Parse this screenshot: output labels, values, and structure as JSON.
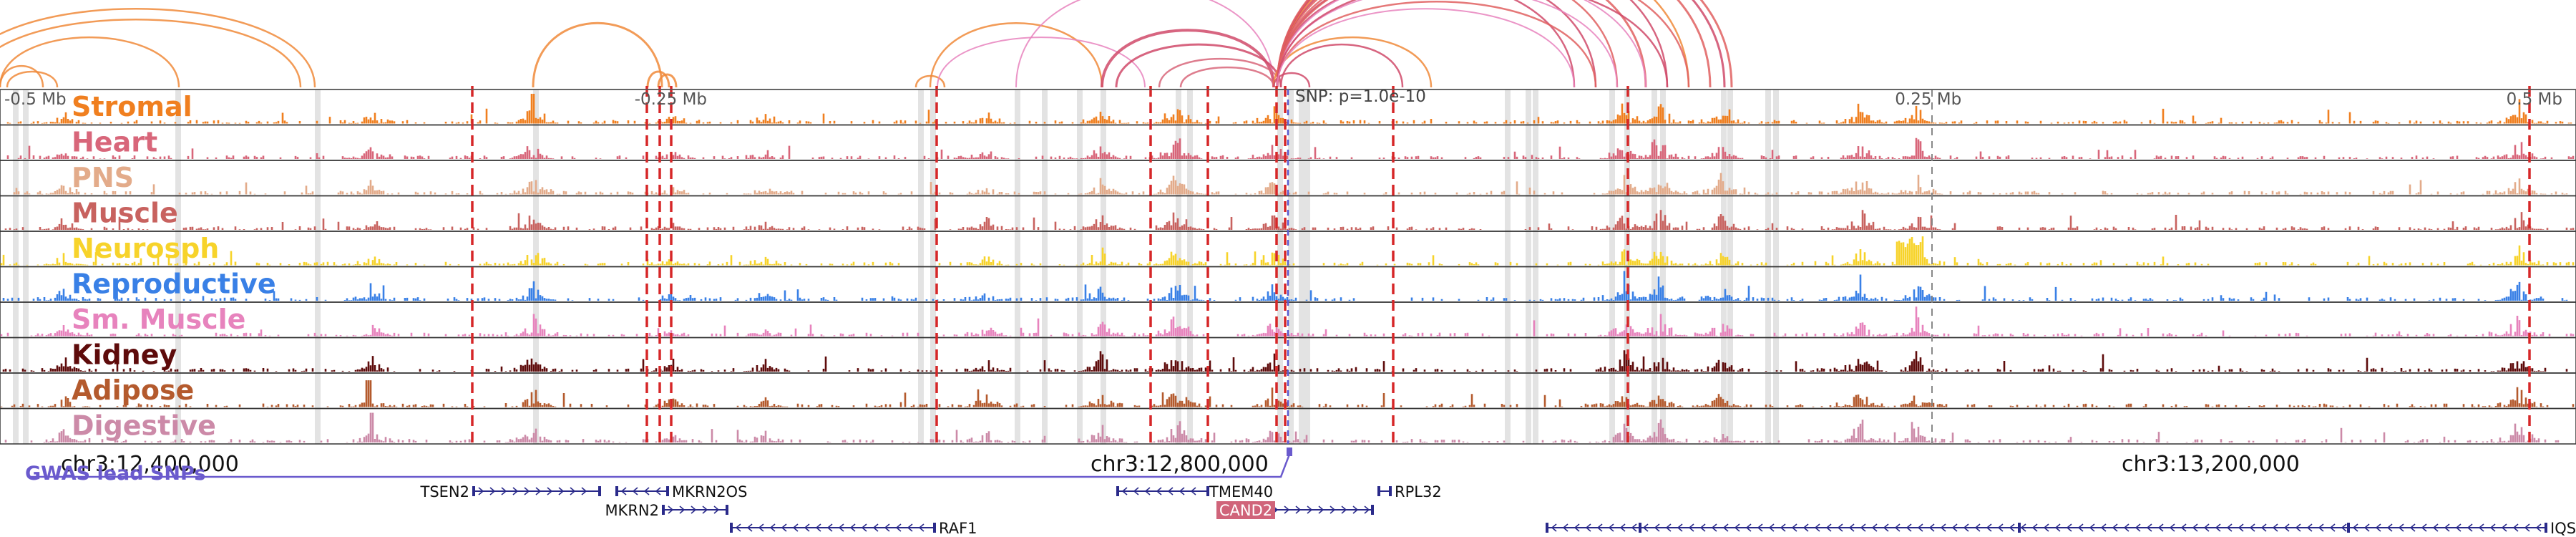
{
  "axis_ticks": [
    {
      "label": "-0.5 Mb",
      "pos": 12470000
    },
    {
      "label": "-0.25 Mb",
      "pos": 12720000
    },
    {
      "label": "0.25 Mb",
      "pos": 13220000
    },
    {
      "label": "0.5 Mb",
      "pos": 13470000
    }
  ],
  "lead_snp": {
    "label": "SNP: p=1.0e-10",
    "pos": 12970000
  },
  "coord_labels": [
    {
      "label": "chr3:12,400,000",
      "pos": 12400000
    },
    {
      "label": "chr3:12,800,000",
      "pos": 12800000
    },
    {
      "label": "chr3:13,200,000",
      "pos": 13200000
    }
  ],
  "gwas_label": "GWAS lead SNPs",
  "tracks": [
    {
      "name": "Stromal",
      "color": "#f07f1f"
    },
    {
      "name": "Heart",
      "color": "#d8667a"
    },
    {
      "name": "PNS",
      "color": "#e3ab8a"
    },
    {
      "name": "Muscle",
      "color": "#c8625f"
    },
    {
      "name": "Neurosph",
      "color": "#f7d32a"
    },
    {
      "name": "Reproductive",
      "color": "#3980e6"
    },
    {
      "name": "Sm. Muscle",
      "color": "#e783bd"
    },
    {
      "name": "Kidney",
      "color": "#5e0b0b"
    },
    {
      "name": "Adipose",
      "color": "#b45a2d"
    },
    {
      "name": "Digestive",
      "color": "#cc8aa8"
    }
  ],
  "genes": [
    {
      "name": "TSEN2",
      "start": 12480000,
      "end": 12555000,
      "strand": "+",
      "row": 0,
      "label_side": "left"
    },
    {
      "name": "MKRN2OS",
      "start": 12560000,
      "end": 12580000,
      "strand": "-",
      "row": 0,
      "label_side": "right"
    },
    {
      "name": "MKRN2",
      "start": 12580000,
      "end": 12615000,
      "strand": "+",
      "row": 1,
      "label_side": "left"
    },
    {
      "name": "RAF1",
      "start": 12615000,
      "end": 12760000,
      "strand": "-",
      "row": 2,
      "label_side": "right"
    },
    {
      "name": "TMEM40",
      "start": 12821000,
      "end": 12860000,
      "strand": "-",
      "row": 0,
      "label_side": "right"
    },
    {
      "name": "CAND2",
      "start": 12885000,
      "end": 12970000,
      "strand": "+",
      "row": 1,
      "label_side": "left",
      "highlight": true
    },
    {
      "name": "RPL32",
      "start": 12978000,
      "end": 12987000,
      "strand": "+",
      "row": 0,
      "label_side": "right"
    },
    {
      "name": "IQSEC",
      "start": 13005000,
      "end": 13500000,
      "strand": "-",
      "row": 2,
      "label_side": "right"
    }
  ],
  "colors": {
    "accent_red": "#d62728",
    "gwas": "#6a5acd",
    "gene": "#2a2a8a",
    "highlight_gene": "#d0647a",
    "bar_grey": "#d9d9d9"
  }
}
